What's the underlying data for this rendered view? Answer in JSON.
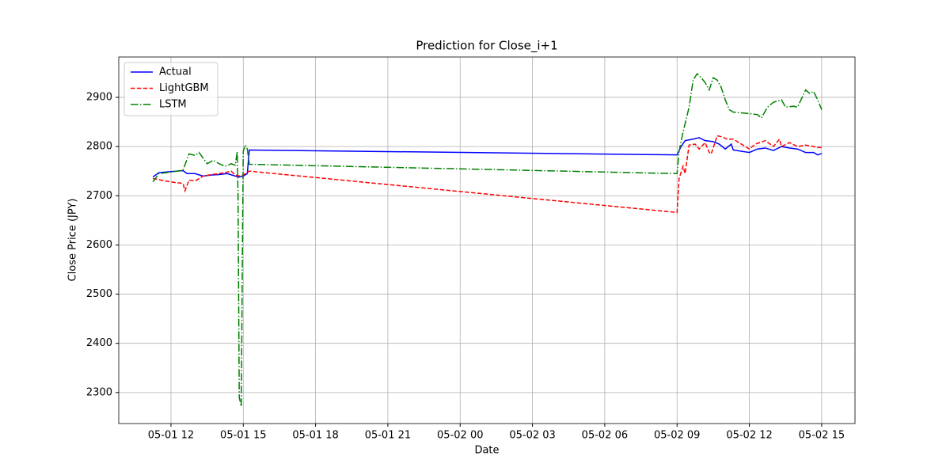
{
  "chart_data": {
    "type": "line",
    "title": "Prediction for Close_i+1",
    "x_label": "Date",
    "y_label": "Close Price (JPY)",
    "xlim": [
      "05-01 09:50",
      "05-02 16:23"
    ],
    "ylim": [
      2237,
      2982
    ],
    "xticks": [
      "05-01 12",
      "05-01 15",
      "05-01 18",
      "05-01 21",
      "05-02 00",
      "05-02 03",
      "05-02 06",
      "05-02 09",
      "05-02 12",
      "05-02 15"
    ],
    "yticks": [
      2300,
      2400,
      2500,
      2600,
      2700,
      2800,
      2900
    ],
    "grid": true,
    "legend": "upper left",
    "series": [
      {
        "name": "Actual",
        "color": "#0000ff",
        "dash": "solid",
        "x": [
          "05-01 11:15",
          "05-01 11:30",
          "05-01 12:00",
          "05-01 12:30",
          "05-01 12:40",
          "05-01 13:00",
          "05-01 13:20",
          "05-01 13:40",
          "05-01 14:00",
          "05-01 14:20",
          "05-01 14:40",
          "05-01 14:50",
          "05-01 15:00",
          "05-01 15:10",
          "05-01 15:15",
          "05-02 09:00",
          "05-02 09:10",
          "05-02 09:20",
          "05-02 09:40",
          "05-02 09:55",
          "05-02 10:10",
          "05-02 10:30",
          "05-02 10:45",
          "05-02 11:00",
          "05-02 11:15",
          "05-02 11:20",
          "05-02 12:00",
          "05-02 12:20",
          "05-02 12:40",
          "05-02 13:00",
          "05-02 13:20",
          "05-02 13:40",
          "05-02 14:00",
          "05-02 14:20",
          "05-02 14:40",
          "05-02 14:50",
          "05-02 15:00"
        ],
        "values": [
          2738,
          2747,
          2749,
          2751,
          2745,
          2745,
          2740,
          2742,
          2743,
          2745,
          2740,
          2738,
          2740,
          2745,
          2793,
          2783,
          2800,
          2812,
          2815,
          2818,
          2812,
          2810,
          2805,
          2795,
          2805,
          2793,
          2788,
          2795,
          2797,
          2792,
          2800,
          2797,
          2795,
          2788,
          2788,
          2783,
          2786
        ]
      },
      {
        "name": "LightGBM",
        "color": "#ff0000",
        "dash": "dashed",
        "x": [
          "05-01 11:15",
          "05-01 12:00",
          "05-01 12:30",
          "05-01 12:35",
          "05-01 12:45",
          "05-01 13:00",
          "05-01 13:20",
          "05-01 13:40",
          "05-01 14:00",
          "05-01 14:20",
          "05-01 14:30",
          "05-01 14:40",
          "05-01 14:50",
          "05-01 15:00",
          "05-01 15:15",
          "05-02 09:00",
          "05-02 09:05",
          "05-02 09:15",
          "05-02 09:20",
          "05-02 09:30",
          "05-02 09:45",
          "05-02 09:55",
          "05-02 10:10",
          "05-02 10:20",
          "05-02 10:25",
          "05-02 10:40",
          "05-02 10:50",
          "05-02 11:05",
          "05-02 11:20",
          "05-02 11:40",
          "05-02 12:00",
          "05-02 12:15",
          "05-02 12:40",
          "05-02 13:00",
          "05-02 13:15",
          "05-02 13:20",
          "05-02 13:40",
          "05-02 14:00",
          "05-02 14:20",
          "05-02 14:40",
          "05-02 14:50",
          "05-02 15:00"
        ],
        "values": [
          2735,
          2728,
          2725,
          2710,
          2732,
          2730,
          2740,
          2743,
          2745,
          2748,
          2750,
          2742,
          2740,
          2742,
          2750,
          2666,
          2735,
          2760,
          2745,
          2803,
          2805,
          2795,
          2808,
          2788,
          2785,
          2822,
          2820,
          2815,
          2815,
          2805,
          2795,
          2805,
          2812,
          2800,
          2815,
          2800,
          2808,
          2800,
          2803,
          2800,
          2798,
          2798
        ]
      },
      {
        "name": "LSTM",
        "color": "#008000",
        "dash": "dashdot",
        "x": [
          "05-01 11:15",
          "05-01 11:30",
          "05-01 12:00",
          "05-01 12:30",
          "05-01 12:45",
          "05-01 13:00",
          "05-01 13:10",
          "05-01 13:30",
          "05-01 13:45",
          "05-01 14:00",
          "05-01 14:15",
          "05-01 14:30",
          "05-01 14:40",
          "05-01 14:45",
          "05-01 14:47",
          "05-01 14:50",
          "05-01 14:55",
          "05-01 14:58",
          "05-01 15:00",
          "05-01 15:05",
          "05-01 15:10",
          "05-01 15:15",
          "05-02 09:00",
          "05-02 09:05",
          "05-02 09:15",
          "05-02 09:30",
          "05-02 09:40",
          "05-02 09:50",
          "05-02 10:00",
          "05-02 10:10",
          "05-02 10:20",
          "05-02 10:30",
          "05-02 10:40",
          "05-02 10:50",
          "05-02 11:00",
          "05-02 11:10",
          "05-02 11:20",
          "05-02 12:00",
          "05-02 12:20",
          "05-02 12:30",
          "05-02 12:45",
          "05-02 13:00",
          "05-02 13:20",
          "05-02 13:30",
          "05-02 13:50",
          "05-02 14:00",
          "05-02 14:20",
          "05-02 14:30",
          "05-02 14:40",
          "05-02 14:50",
          "05-02 15:00"
        ],
        "values": [
          2728,
          2745,
          2748,
          2752,
          2785,
          2782,
          2788,
          2765,
          2772,
          2765,
          2760,
          2765,
          2762,
          2790,
          2700,
          2290,
          2272,
          2600,
          2790,
          2803,
          2795,
          2764,
          2745,
          2790,
          2830,
          2880,
          2935,
          2948,
          2940,
          2930,
          2915,
          2940,
          2935,
          2920,
          2895,
          2875,
          2870,
          2867,
          2865,
          2858,
          2880,
          2890,
          2895,
          2880,
          2882,
          2880,
          2915,
          2908,
          2912,
          2895,
          2875
        ]
      }
    ]
  }
}
